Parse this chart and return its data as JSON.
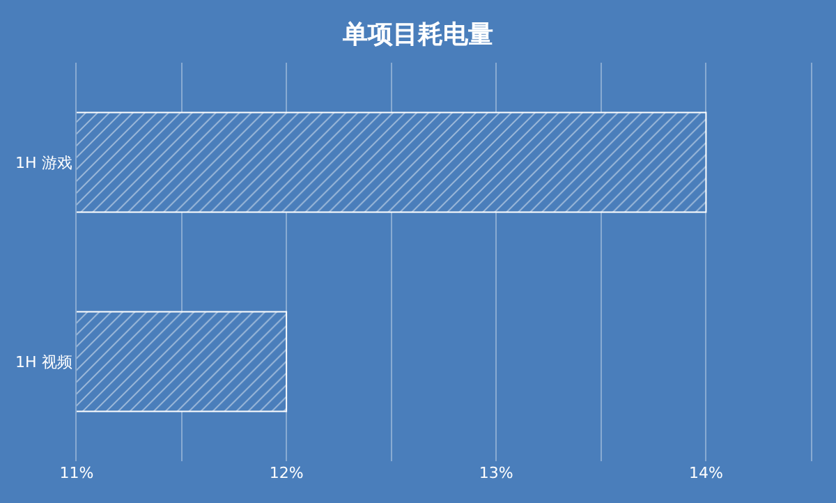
{
  "chart_data": {
    "type": "bar",
    "orientation": "horizontal",
    "title": "单项目耗电量",
    "categories": [
      "1H 游戏",
      "1H 视频"
    ],
    "values": [
      14,
      12
    ],
    "color": "#ffffff",
    "xlim": [
      11,
      14.5
    ],
    "xticks": [
      {
        "value": 11,
        "label": "11%"
      },
      {
        "value": 11.5,
        "label": null
      },
      {
        "value": 12,
        "label": "12%"
      },
      {
        "value": 12.5,
        "label": null
      },
      {
        "value": 13,
        "label": "13%"
      },
      {
        "value": 13.5,
        "label": null
      },
      {
        "value": 14,
        "label": "14%"
      },
      {
        "value": 14.5,
        "label": null
      }
    ],
    "grid": "x"
  }
}
